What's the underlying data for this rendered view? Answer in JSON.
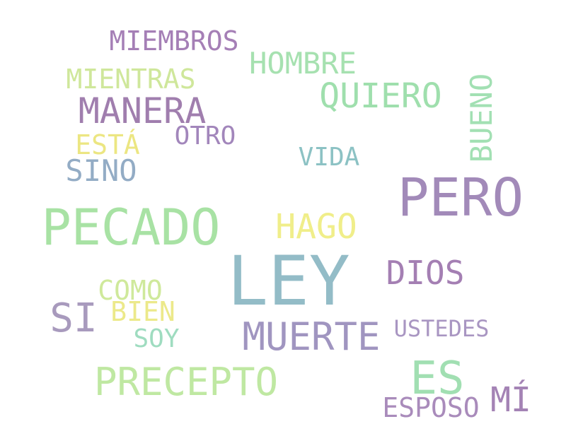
{
  "words": {
    "miembros": {
      "text": "MIEMBROS",
      "color": "#a57fb6"
    },
    "hombre": {
      "text": "HOMBRE",
      "color": "#a6e1b0"
    },
    "mientras": {
      "text": "MIENTRAS",
      "color": "#cfe79b"
    },
    "quiero": {
      "text": "QUIERO",
      "color": "#9fdfad"
    },
    "bueno": {
      "text": "BUENO",
      "color": "#a2e0b3"
    },
    "manera": {
      "text": "MANERA",
      "color": "#a07eae"
    },
    "otro": {
      "text": "OTRO",
      "color": "#a286bb"
    },
    "esta": {
      "text": "ESTÁ",
      "color": "#ece682"
    },
    "vida": {
      "text": "VIDA",
      "color": "#8cc2c4"
    },
    "sino": {
      "text": "SINO",
      "color": "#93acc5"
    },
    "pero": {
      "text": "PERO",
      "color": "#a28ab9"
    },
    "pecado": {
      "text": "PECADO",
      "color": "#a8e2a4"
    },
    "hago": {
      "text": "HAGO",
      "color": "#f0ee8a"
    },
    "ley": {
      "text": "LEY",
      "color": "#93bcc7"
    },
    "dios": {
      "text": "DIOS",
      "color": "#a47fb3"
    },
    "como": {
      "text": "COMO",
      "color": "#cfe99b"
    },
    "si": {
      "text": "SI",
      "color": "#a89abd"
    },
    "bien": {
      "text": "BIEN",
      "color": "#ece98a"
    },
    "muerte": {
      "text": "MUERTE",
      "color": "#a095c0"
    },
    "ustedes": {
      "text": "USTEDES",
      "color": "#a996c2"
    },
    "soy": {
      "text": "SOY",
      "color": "#9fdcc0"
    },
    "precepto": {
      "text": "PRECEPTO",
      "color": "#bfe8a2"
    },
    "es": {
      "text": "ES",
      "color": "#a1dfb2"
    },
    "mi": {
      "text": "MÍ",
      "color": "#a483b5"
    },
    "esposo": {
      "text": "ESPOSO",
      "color": "#a98bbb"
    }
  }
}
